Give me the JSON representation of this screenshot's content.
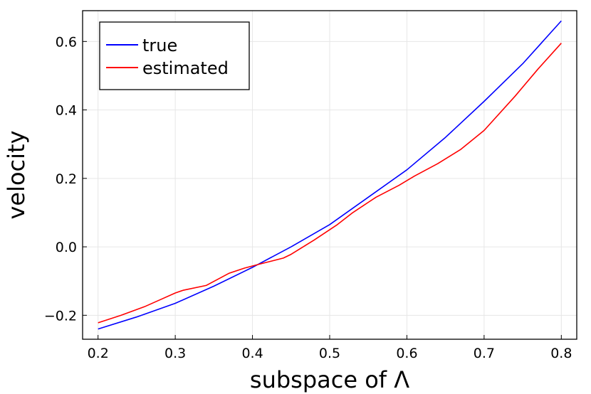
{
  "chart_data": {
    "type": "line",
    "xlabel": "subspace of Λ",
    "ylabel": "velocity",
    "xlim": [
      0.18,
      0.82
    ],
    "ylim": [
      -0.27,
      0.69
    ],
    "xticks": [
      0.2,
      0.3,
      0.4,
      0.5,
      0.6,
      0.7,
      0.8
    ],
    "yticks": [
      -0.2,
      0.0,
      0.2,
      0.4,
      0.6
    ],
    "xtick_labels": [
      "0.2",
      "0.3",
      "0.4",
      "0.5",
      "0.6",
      "0.7",
      "0.8"
    ],
    "ytick_labels": [
      "−0.2",
      "0.0",
      "0.2",
      "0.4",
      "0.6"
    ],
    "grid": true,
    "legend_position": "top-left",
    "series": [
      {
        "name": "true",
        "color": "#0000ff",
        "x": [
          0.2,
          0.25,
          0.3,
          0.35,
          0.4,
          0.45,
          0.5,
          0.55,
          0.6,
          0.65,
          0.7,
          0.75,
          0.8
        ],
        "y": [
          -0.24,
          -0.205,
          -0.165,
          -0.115,
          -0.06,
          0.0,
          0.065,
          0.145,
          0.225,
          0.32,
          0.425,
          0.535,
          0.66
        ]
      },
      {
        "name": "estimated",
        "color": "#ff0000",
        "x": [
          0.2,
          0.23,
          0.26,
          0.28,
          0.3,
          0.31,
          0.34,
          0.37,
          0.39,
          0.41,
          0.44,
          0.45,
          0.48,
          0.51,
          0.53,
          0.55,
          0.56,
          0.59,
          0.61,
          0.64,
          0.67,
          0.7,
          0.74,
          0.77,
          0.8
        ],
        "y": [
          -0.222,
          -0.2,
          -0.175,
          -0.155,
          -0.135,
          -0.127,
          -0.113,
          -0.077,
          -0.062,
          -0.05,
          -0.033,
          -0.022,
          0.02,
          0.065,
          0.1,
          0.13,
          0.145,
          0.18,
          0.207,
          0.243,
          0.285,
          0.34,
          0.44,
          0.52,
          0.595
        ]
      }
    ]
  }
}
